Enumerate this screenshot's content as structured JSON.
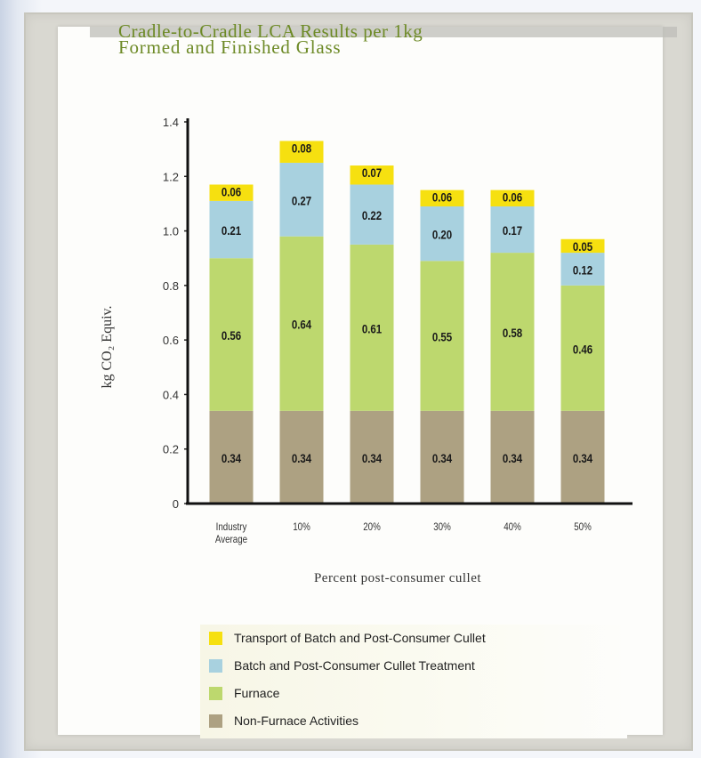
{
  "chart_data": {
    "type": "bar",
    "stacked": true,
    "title_line1": "Cradle-to-Cradle LCA Results per 1kg",
    "title_line2": "Formed and Finished Glass",
    "ylabel": "kg CO₂ Equiv.",
    "xlabel": "Percent post-consumer cullet",
    "ylim": [
      0,
      1.4
    ],
    "yticks": [
      "0",
      "0.2",
      "0.4",
      "0.6",
      "0.8",
      "1.0",
      "1.2",
      "1.4"
    ],
    "ytick_values": [
      0,
      0.2,
      0.4,
      0.6,
      0.8,
      1.0,
      1.2,
      1.4
    ],
    "categories": [
      [
        "Industry",
        "Average"
      ],
      [
        "10%"
      ],
      [
        "20%"
      ],
      [
        "30%"
      ],
      [
        "40%"
      ],
      [
        "50%"
      ]
    ],
    "series": [
      {
        "name": "Non-Furnace Activities",
        "color": "#ada182",
        "values": [
          0.34,
          0.34,
          0.34,
          0.34,
          0.34,
          0.34
        ],
        "labels": [
          "0.34",
          "0.34",
          "0.34",
          "0.34",
          "0.34",
          "0.34"
        ]
      },
      {
        "name": "Furnace",
        "color": "#bdd86e",
        "values": [
          0.56,
          0.64,
          0.61,
          0.55,
          0.58,
          0.46
        ],
        "labels": [
          "0.56",
          "0.64",
          "0.61",
          "0.55",
          "0.58",
          "0.46"
        ]
      },
      {
        "name": "Batch and Post-Consumer Cullet Treatment",
        "color": "#a8d1df",
        "values": [
          0.21,
          0.27,
          0.22,
          0.2,
          0.17,
          0.12
        ],
        "labels": [
          "0.21",
          "0.27",
          "0.22",
          "0.20",
          "0.17",
          "0.12"
        ]
      },
      {
        "name": "Transport of Batch and Post-Consumer Cullet",
        "color": "#f6e010",
        "values": [
          0.06,
          0.08,
          0.07,
          0.06,
          0.06,
          0.05
        ],
        "labels": [
          "0.06",
          "0.08",
          "0.07",
          "0.06",
          "0.06",
          "0.05"
        ]
      }
    ],
    "legend_order": [
      3,
      2,
      1,
      0
    ],
    "legend": [
      "Transport of Batch and Post-Consumer Cullet",
      "Batch and Post-Consumer Cullet Treatment",
      "Furnace",
      "Non-Furnace Activities"
    ],
    "legend_colors": [
      "#f6e010",
      "#a8d1df",
      "#bdd86e",
      "#ada182"
    ],
    "legend_position": "bottom",
    "grid": false
  }
}
